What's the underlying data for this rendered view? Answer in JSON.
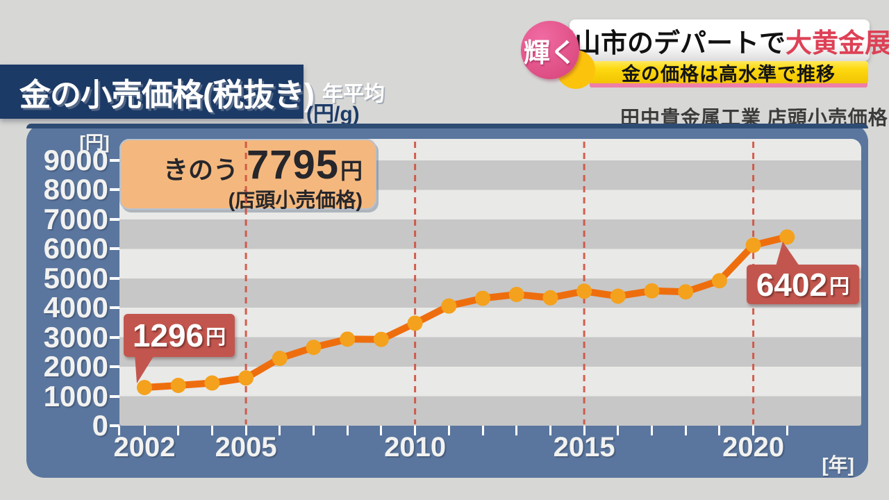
{
  "header": {
    "title": "金の小売価格(税抜き)",
    "title_suffix": "年平均",
    "unit_label": "(円/g)",
    "badge_label": "輝く",
    "headline_black": "岡山市のデパートで",
    "headline_red": "大黄金展",
    "subheadline": "金の価格は高水準で推移",
    "source": "田中貴金属工業 店頭小売価格"
  },
  "chart": {
    "y_axis_cap": "[円]",
    "x_axis_cap": "[年]",
    "callout_2002": {
      "value": "1296",
      "unit": "円"
    },
    "callout_2021": {
      "value": "6402",
      "unit": "円"
    },
    "infobox": {
      "prefix": "きのう",
      "value": "7795",
      "unit": "円",
      "note": "(店頭小売価格)"
    }
  },
  "chart_data": {
    "type": "line",
    "title": "金の小売価格(税抜き) 年平均",
    "ylabel": "円",
    "xlabel": "年",
    "unit": "円/g",
    "x": [
      2002,
      2003,
      2004,
      2005,
      2006,
      2007,
      2008,
      2009,
      2010,
      2011,
      2012,
      2013,
      2014,
      2015,
      2016,
      2017,
      2018,
      2019,
      2020,
      2021
    ],
    "values": [
      1296,
      1367,
      1449,
      1619,
      2286,
      2657,
      2937,
      2928,
      3477,
      4060,
      4321,
      4453,
      4340,
      4564,
      4394,
      4576,
      4541,
      4918,
      6123,
      6402
    ],
    "ylim": [
      0,
      9730
    ],
    "y_tick_step": 1000,
    "y_tick_labels": [
      "9000",
      "8000",
      "7000",
      "6000",
      "5000",
      "4000",
      "3000",
      "2000",
      "1000",
      "0"
    ],
    "x_tick_labels": [
      "2002",
      "2005",
      "2010",
      "2015",
      "2020"
    ],
    "dashed_vlines_at": [
      2005,
      2010,
      2015,
      2020
    ],
    "grid": "horizontal-stripes",
    "legend": "none",
    "annotations": [
      {
        "year": 2002,
        "text": "1296円"
      },
      {
        "year": 2021,
        "text": "6402円"
      },
      {
        "text": "きのう 7795円 (店頭小売価格)"
      }
    ]
  },
  "colors": {
    "page_bg": "#d7d7d5",
    "navy": "#1c3a66",
    "panel_blue": "#5a769e",
    "panel_border": "#2d4c74",
    "stripe_dark": "#c7c7c7",
    "stripe_light": "#e9e9e7",
    "line_orange": "#ee6e0e",
    "marker_orange": "#f4a11d",
    "dashed_red": "#d0503f",
    "callout_red": "#c2564e",
    "infobox_bg": "#f4b87e",
    "infobox_text": "#26262b",
    "headline_red": "#dd4156",
    "badge_pink": "#dc4c82",
    "badge_pink_light": "#f06ba2",
    "badge_yellow": "#fcc30c",
    "pink_shadow": "#ee7fa6",
    "source_gray": "#3b3b3b",
    "axis_text": "#f2f2f0"
  }
}
